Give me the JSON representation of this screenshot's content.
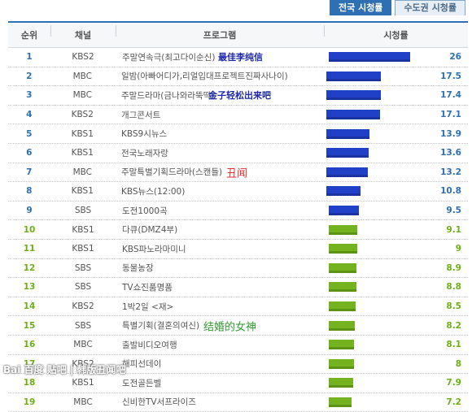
{
  "tabs": [
    {
      "label": "전국 시청률",
      "active": true
    },
    {
      "label": "수도권 시청률",
      "active": false
    }
  ],
  "header": {
    "rank": "순위",
    "channel": "채널",
    "program": "프로그램",
    "rating": "시청률"
  },
  "chart_data": {
    "type": "bar",
    "categories": [
      "1",
      "2",
      "3",
      "4",
      "5",
      "6",
      "7",
      "8",
      "9",
      "10",
      "11",
      "12",
      "13",
      "14",
      "15",
      "16",
      "17",
      "18",
      "19"
    ],
    "values": [
      26,
      17.5,
      17.4,
      17.1,
      13.9,
      13.6,
      13.2,
      10.8,
      9.5,
      9.1,
      9,
      8.9,
      8.8,
      8.5,
      8.2,
      8.1,
      8,
      7.9,
      7.2
    ],
    "xmax": 26
  },
  "rows": [
    {
      "rank": "1",
      "channel": "KBS2",
      "program": "주말연속극(최고다이순신)",
      "rating": "26",
      "color": "#2140c8"
    },
    {
      "rank": "2",
      "channel": "MBC",
      "program": "일밤(아빠어디가,리얼입대프로젝트진짜사나이)",
      "rating": "17.5",
      "color": "#2140c8"
    },
    {
      "rank": "3",
      "channel": "MBC",
      "program": "주말드라마(금나와라뚝딱)",
      "rating": "17.4",
      "color": "#2140c8"
    },
    {
      "rank": "4",
      "channel": "KBS2",
      "program": "개그콘서트",
      "rating": "17.1",
      "color": "#2140c8"
    },
    {
      "rank": "5",
      "channel": "KBS1",
      "program": "KBS9시뉴스",
      "rating": "13.9",
      "color": "#2140c8"
    },
    {
      "rank": "6",
      "channel": "KBS1",
      "program": "전국노래자랑",
      "rating": "13.6",
      "color": "#2140c8"
    },
    {
      "rank": "7",
      "channel": "MBC",
      "program": "주말특별기획드라마(스캔들)",
      "rating": "13.2",
      "color": "#2140c8"
    },
    {
      "rank": "8",
      "channel": "KBS1",
      "program": "KBS뉴스(12:00)",
      "rating": "10.8",
      "color": "#2140c8"
    },
    {
      "rank": "9",
      "channel": "SBS",
      "program": "도전1000곡",
      "rating": "9.5",
      "color": "#2140c8"
    },
    {
      "rank": "10",
      "channel": "KBS1",
      "program": "다큐(DMZ4부)",
      "rating": "9.1",
      "color": "#74b31f"
    },
    {
      "rank": "11",
      "channel": "KBS1",
      "program": "KBS파노라마미니",
      "rating": "9",
      "color": "#74b31f"
    },
    {
      "rank": "12",
      "channel": "SBS",
      "program": "동물농장",
      "rating": "8.9",
      "color": "#74b31f"
    },
    {
      "rank": "13",
      "channel": "SBS",
      "program": "TV쇼진품명품",
      "rating": "8.8",
      "color": "#74b31f"
    },
    {
      "rank": "14",
      "channel": "KBS2",
      "program": "1박2일 <재>",
      "rating": "8.5",
      "color": "#74b31f"
    },
    {
      "rank": "15",
      "channel": "SBS",
      "program": "특별기획(결혼의여신)",
      "rating": "8.2",
      "color": "#74b31f"
    },
    {
      "rank": "16",
      "channel": "MBC",
      "program": "출발비디오여행",
      "rating": "8.1",
      "color": "#74b31f"
    },
    {
      "rank": "17",
      "channel": "KBS2",
      "program": "해피선데이",
      "rating": "8",
      "color": "#74b31f"
    },
    {
      "rank": "18",
      "channel": "KBS1",
      "program": "도전골든벨",
      "rating": "7.9",
      "color": "#74b31f"
    },
    {
      "rank": "19",
      "channel": "MBC",
      "program": "신비한TV서프라이즈",
      "rating": "7.2",
      "color": "#74b31f"
    }
  ],
  "annotations": {
    "row1": "最佳李纯信",
    "row3": "金子轻松出来吧",
    "row7": "丑闻",
    "row15": "结婚的女神"
  },
  "watermark": "Bai 百度 贴吧 | 韩版丑闻吧"
}
